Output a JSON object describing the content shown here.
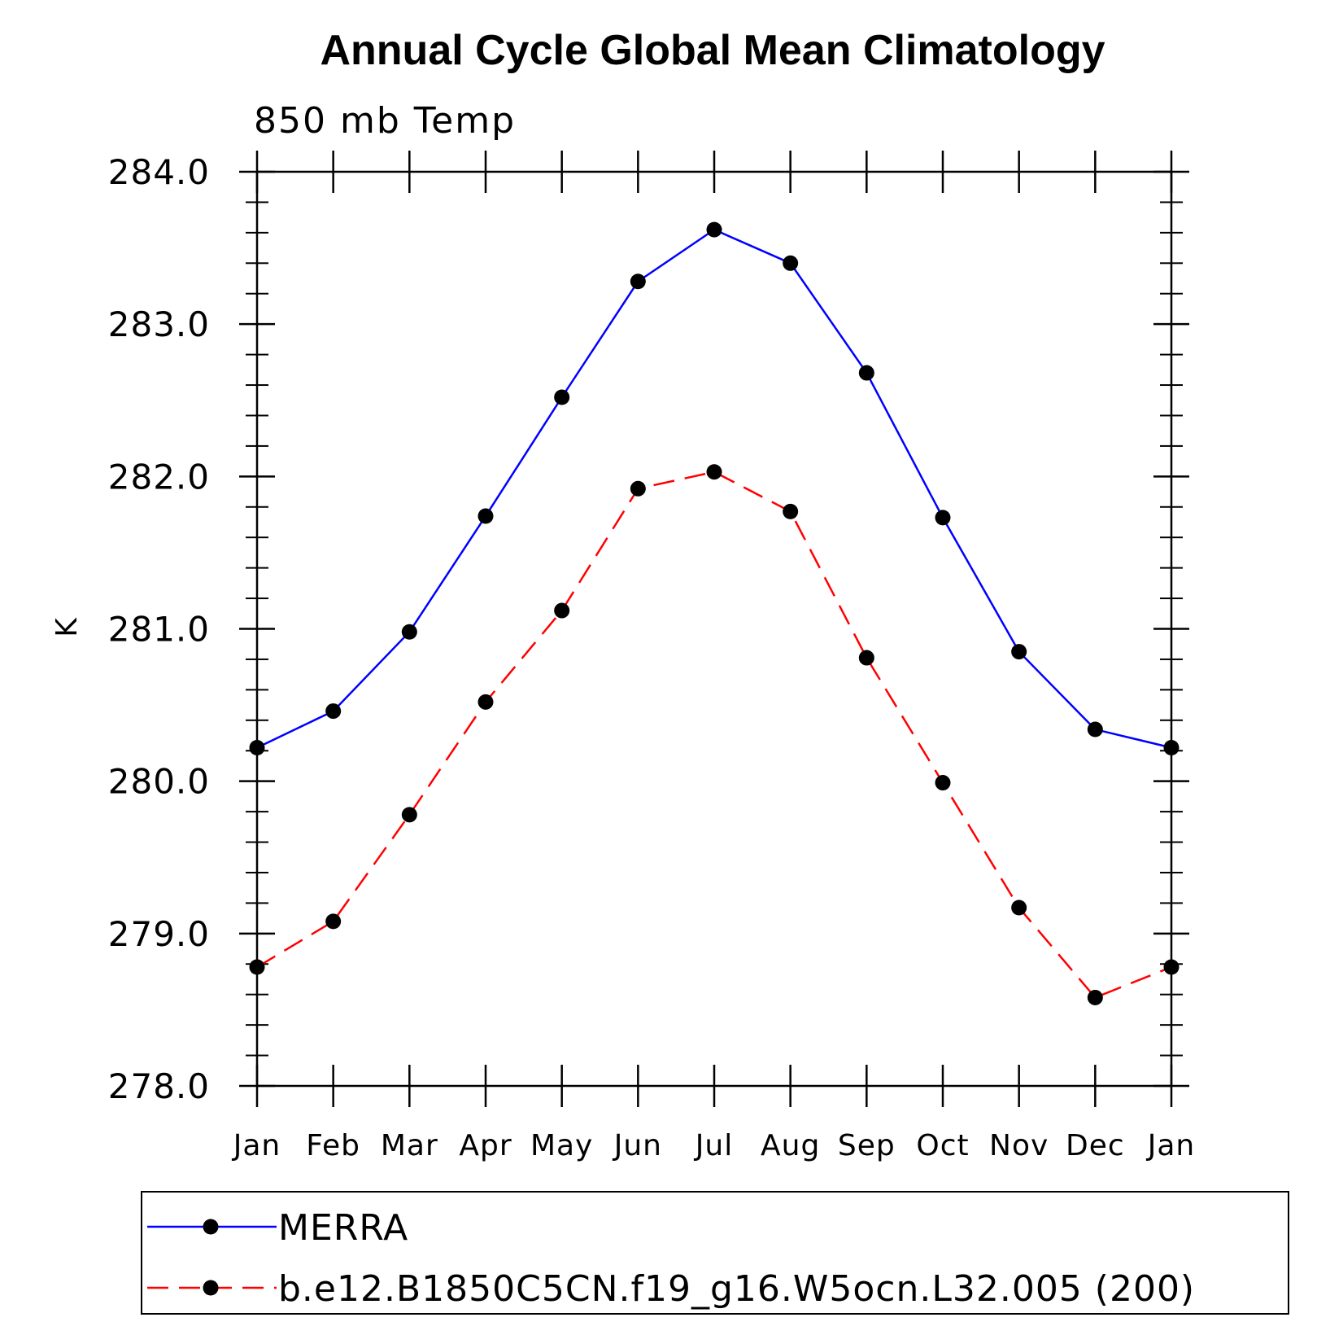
{
  "chart_data": {
    "type": "line",
    "title": "Annual Cycle Global Mean Climatology",
    "subtitle": "850 mb Temp",
    "xlabel": "",
    "ylabel": "K",
    "categories": [
      "Jan",
      "Feb",
      "Mar",
      "Apr",
      "May",
      "Jun",
      "Jul",
      "Aug",
      "Sep",
      "Oct",
      "Nov",
      "Dec",
      "Jan"
    ],
    "ylim": [
      278.0,
      284.0
    ],
    "yticks": [
      "278.0",
      "279.0",
      "280.0",
      "281.0",
      "282.0",
      "283.0",
      "284.0"
    ],
    "grid": false,
    "legend_position": "bottom",
    "series": [
      {
        "name": "MERRA",
        "color": "#0000ff",
        "line_style": "solid",
        "marker": "filled-circle",
        "values": [
          280.22,
          280.46,
          280.98,
          281.74,
          282.52,
          283.28,
          283.62,
          283.4,
          282.68,
          281.73,
          280.85,
          280.34,
          280.22
        ]
      },
      {
        "name": "b.e12.B1850C5CN.f19_g16.W5ocn.L32.005 (200)",
        "color": "#ff0000",
        "line_style": "dashed",
        "marker": "filled-circle",
        "values": [
          278.78,
          279.08,
          279.78,
          280.52,
          281.12,
          281.92,
          282.03,
          281.77,
          280.81,
          279.99,
          279.17,
          278.58,
          278.78
        ]
      }
    ]
  }
}
